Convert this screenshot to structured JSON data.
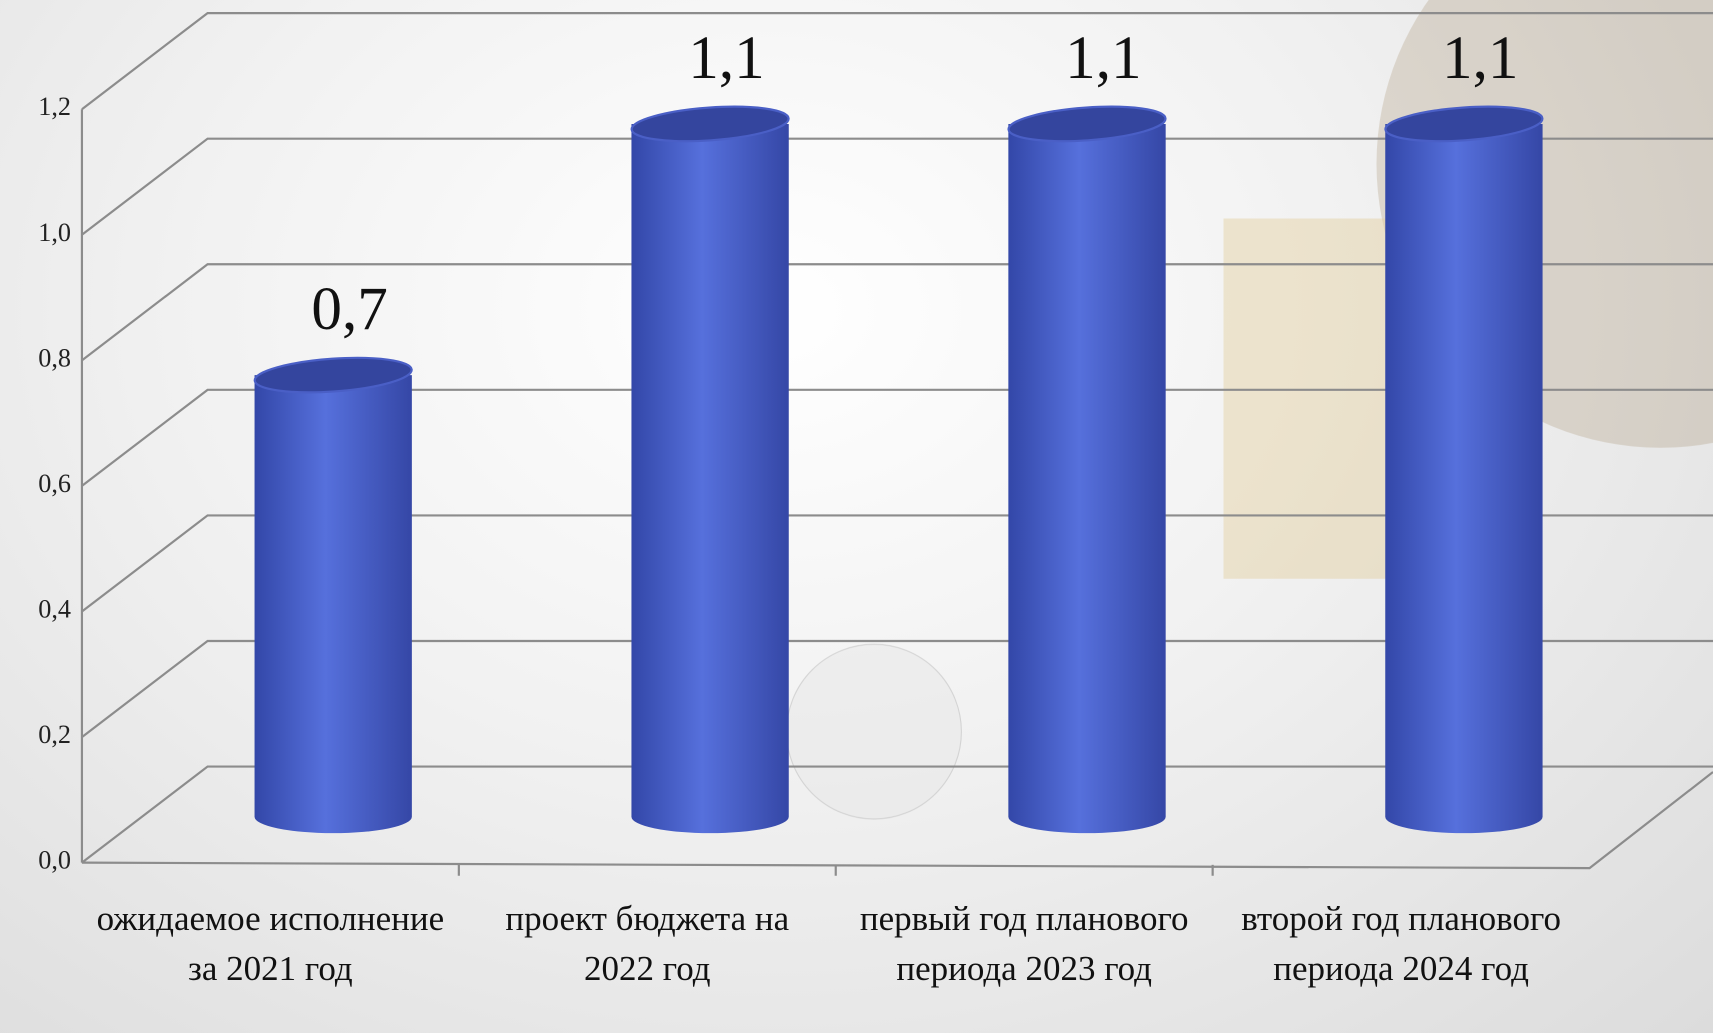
{
  "chart_data": {
    "type": "bar",
    "categories": [
      "ожидаемое исполнение за 2021 год",
      "проект бюджета на 2022 год",
      "первый год планового периода 2023 год",
      "второй год планового периода 2024 год"
    ],
    "values": [
      0.7,
      1.1,
      1.1,
      1.1
    ],
    "value_labels": [
      "0,7",
      "1,1",
      "1,1",
      "1,1"
    ],
    "color": "#4a63cf",
    "ylim": [
      0,
      1.2
    ],
    "yticks": [
      {
        "value": 0,
        "label": "0,0"
      },
      {
        "value": 0.2,
        "label": "0,2"
      },
      {
        "value": 0.4,
        "label": "0,4"
      },
      {
        "value": 0.6,
        "label": "0,6"
      },
      {
        "value": 0.8,
        "label": "0,8"
      },
      {
        "value": 1.0,
        "label": "1,0"
      },
      {
        "value": 1.2,
        "label": "1,2"
      }
    ],
    "grid": true
  }
}
